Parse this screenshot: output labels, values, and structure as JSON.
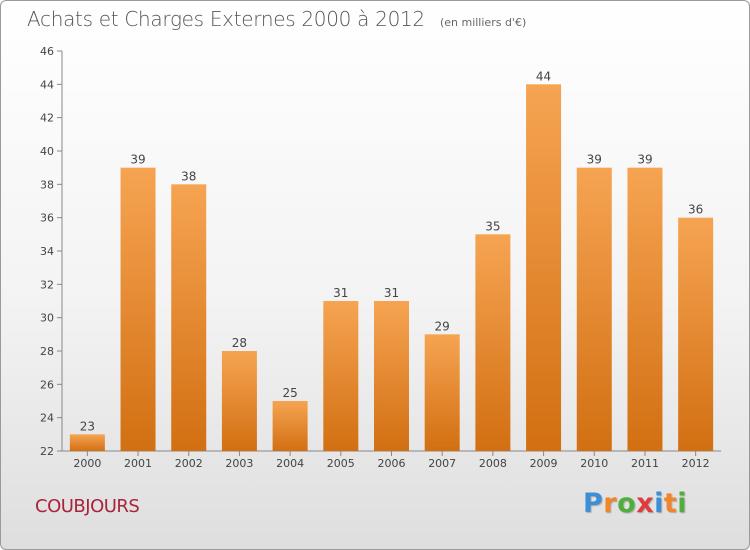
{
  "header": {
    "title": "Achats et Charges Externes 2000 à 2012",
    "subtitle": "(en milliers d'€)"
  },
  "footer": {
    "commune": "COUBJOURS"
  },
  "logo": {
    "text": "Proxiti",
    "letter_colors": [
      "#3b8ed8",
      "#f0852a",
      "#4fae3c",
      "#e03a3a",
      "#3b8ed8",
      "#f0852a",
      "#4fae3c"
    ]
  },
  "colors": {
    "bar_top": "#f6a452",
    "bar_bottom": "#d26f12",
    "axis": "#888888",
    "label": "#444444"
  },
  "chart_data": {
    "type": "bar",
    "categories": [
      "2000",
      "2001",
      "2002",
      "2003",
      "2004",
      "2005",
      "2006",
      "2007",
      "2008",
      "2009",
      "2010",
      "2011",
      "2012"
    ],
    "values": [
      23,
      39,
      38,
      28,
      25,
      31,
      31,
      29,
      35,
      44,
      39,
      39,
      36
    ],
    "ylim": [
      22,
      46
    ],
    "yticks": [
      22,
      24,
      26,
      28,
      30,
      32,
      34,
      36,
      38,
      40,
      42,
      44,
      46
    ],
    "grid": false,
    "data_labels": true
  }
}
